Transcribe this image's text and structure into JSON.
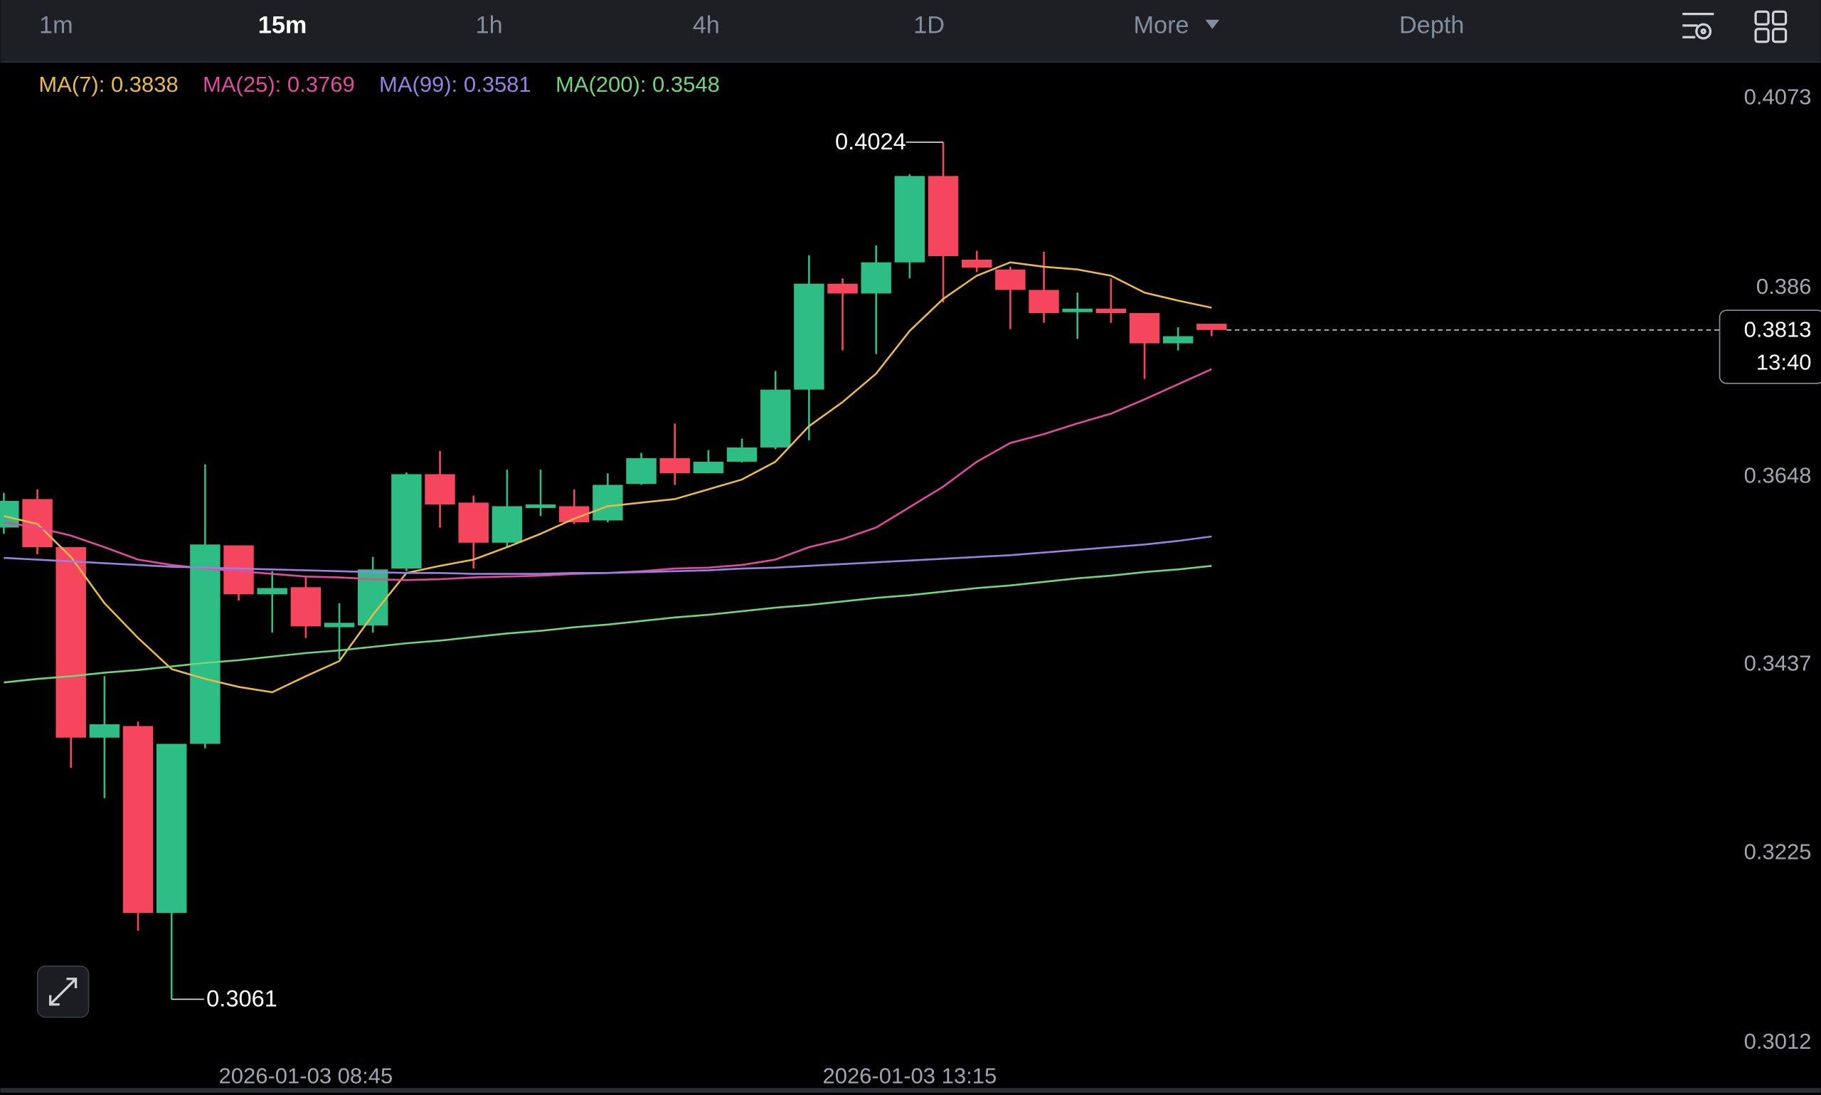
{
  "toolbar": {
    "tabs": [
      "1m",
      "15m",
      "1h",
      "4h",
      "1D",
      "More",
      "Depth"
    ],
    "selected": 1
  },
  "chart_data": {
    "type": "candlestick",
    "categories": [
      null,
      null,
      null,
      null,
      null,
      null,
      null,
      null,
      null,
      "2026-01-03 08:45",
      null,
      null,
      null,
      null,
      null,
      null,
      null,
      null,
      null,
      null,
      null,
      null,
      null,
      null,
      null,
      null,
      null,
      "2026-01-03 13:15",
      null,
      null,
      null,
      null,
      null,
      null,
      null,
      null,
      null
    ],
    "open": [
      0.3591,
      0.3623,
      0.3569,
      0.3355,
      0.3368,
      0.3158,
      0.3348,
      0.3571,
      0.3516,
      0.3524,
      0.3479,
      0.3481,
      0.3545,
      0.3651,
      0.3619,
      0.3574,
      0.3613,
      0.3615,
      0.3599,
      0.364,
      0.3669,
      0.3652,
      0.3665,
      0.3681,
      0.3746,
      0.3865,
      0.3854,
      0.3889,
      0.3986,
      0.3892,
      0.3881,
      0.3858,
      0.3833,
      0.3837,
      0.3832,
      0.3798,
      0.382
    ],
    "high": [
      0.363,
      0.3634,
      0.3569,
      0.3424,
      0.3373,
      0.3348,
      0.3662,
      0.3571,
      0.3542,
      0.3535,
      0.3506,
      0.3558,
      0.3653,
      0.3677,
      0.3627,
      0.3656,
      0.3656,
      0.3634,
      0.3652,
      0.3675,
      0.3708,
      0.3678,
      0.3691,
      0.3767,
      0.3897,
      0.3871,
      0.3908,
      0.3988,
      0.4024,
      0.3902,
      0.3884,
      0.3901,
      0.3855,
      0.3871,
      0.3832,
      0.3816,
      0.382
    ],
    "low": [
      0.3584,
      0.3561,
      0.3321,
      0.3287,
      0.3138,
      0.3061,
      0.3343,
      0.3509,
      0.3473,
      0.3467,
      0.3443,
      0.3473,
      0.3542,
      0.3591,
      0.3545,
      0.3569,
      0.3604,
      0.3595,
      0.3597,
      0.3639,
      0.3639,
      0.3652,
      0.3664,
      0.3679,
      0.3689,
      0.379,
      0.3786,
      0.3871,
      0.3844,
      0.3878,
      0.3814,
      0.3821,
      0.3803,
      0.3821,
      0.3758,
      0.379,
      0.3806
    ],
    "close": [
      0.3621,
      0.3569,
      0.3355,
      0.337,
      0.3158,
      0.3348,
      0.3572,
      0.3516,
      0.3523,
      0.348,
      0.3484,
      0.3544,
      0.3651,
      0.3617,
      0.3574,
      0.3615,
      0.3617,
      0.3597,
      0.3639,
      0.3669,
      0.3652,
      0.3665,
      0.3681,
      0.3746,
      0.3865,
      0.3854,
      0.3889,
      0.3986,
      0.3896,
      0.3883,
      0.3858,
      0.3832,
      0.3837,
      0.3832,
      0.3798,
      0.3806,
      0.3813
    ],
    "up_color": "#2ebd85",
    "down_color": "#f6465d",
    "countdown": "13:40",
    "series": [
      {
        "name": "MA(7): 0.3838",
        "color": "#e9b949",
        "values": [
          0.3604,
          0.3595,
          0.3558,
          0.3506,
          0.3467,
          0.3432,
          0.3421,
          0.3412,
          0.3406,
          0.3424,
          0.3441,
          0.3493,
          0.354,
          0.3548,
          0.3555,
          0.3569,
          0.3584,
          0.3601,
          0.3615,
          0.3619,
          0.3623,
          0.3634,
          0.3645,
          0.3665,
          0.3705,
          0.3732,
          0.3764,
          0.3812,
          0.3848,
          0.3874,
          0.3889,
          0.3884,
          0.3881,
          0.3874,
          0.3855,
          0.3846,
          0.3838
        ]
      },
      {
        "name": "MA(25): 0.3769",
        "color": "#e04ba0",
        "values": [
          0.3597,
          0.3591,
          0.3582,
          0.3569,
          0.3555,
          0.3549,
          0.3545,
          0.3542,
          0.3539,
          0.3536,
          0.3535,
          0.3533,
          0.3532,
          0.3533,
          0.3535,
          0.3536,
          0.3537,
          0.3539,
          0.354,
          0.3542,
          0.3545,
          0.3546,
          0.3549,
          0.3555,
          0.3569,
          0.3578,
          0.3591,
          0.3614,
          0.3637,
          0.3665,
          0.3686,
          0.3696,
          0.3708,
          0.3719,
          0.3735,
          0.3752,
          0.3769
        ]
      },
      {
        "name": "MA(99): 0.3581",
        "color": "#9b7fe3",
        "values": [
          0.3557,
          0.3555,
          0.3553,
          0.3551,
          0.3549,
          0.3547,
          0.3546,
          0.3545,
          0.3544,
          0.3543,
          0.3542,
          0.3541,
          0.354,
          0.354,
          0.3539,
          0.3539,
          0.3539,
          0.354,
          0.354,
          0.3541,
          0.3542,
          0.3543,
          0.3545,
          0.3546,
          0.3548,
          0.355,
          0.3552,
          0.3554,
          0.3556,
          0.3558,
          0.356,
          0.3563,
          0.3566,
          0.3569,
          0.3572,
          0.3576,
          0.3581
        ]
      },
      {
        "name": "MA(200): 0.3548",
        "color": "#72d47c",
        "values": [
          0.3417,
          0.3421,
          0.3424,
          0.3428,
          0.3431,
          0.3435,
          0.3439,
          0.3442,
          0.3446,
          0.345,
          0.3453,
          0.3457,
          0.3461,
          0.3464,
          0.3468,
          0.3472,
          0.3475,
          0.3479,
          0.3482,
          0.3486,
          0.349,
          0.3493,
          0.3497,
          0.3501,
          0.3504,
          0.3508,
          0.3512,
          0.3515,
          0.3519,
          0.3523,
          0.3526,
          0.353,
          0.3534,
          0.3537,
          0.3541,
          0.3544,
          0.3548
        ]
      }
    ],
    "ylim": [
      0.299,
      0.4112
    ],
    "yticks": [
      0.4073,
      0.386,
      0.3648,
      0.3437,
      0.3225,
      0.3012
    ]
  }
}
